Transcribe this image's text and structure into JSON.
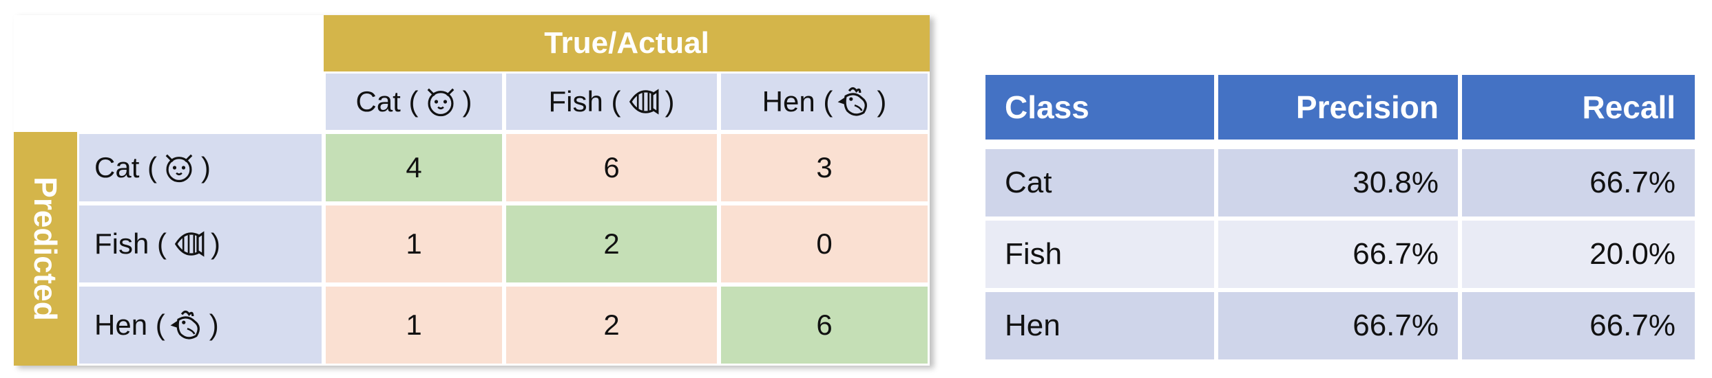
{
  "confusion_matrix": {
    "header": "True/Actual",
    "side_label": "Predicted",
    "col_labels": [
      "Cat (",
      "Fish (",
      "Hen ("
    ],
    "row_labels": [
      "Cat (",
      "Fish (",
      "Hen ("
    ],
    "close_paren": ")",
    "icons": [
      "cat-icon",
      "fish-icon",
      "hen-icon"
    ],
    "values": [
      [
        "4",
        "6",
        "3"
      ],
      [
        "1",
        "2",
        "0"
      ],
      [
        "1",
        "2",
        "6"
      ]
    ]
  },
  "metrics_table": {
    "headers": [
      "Class",
      "Precision",
      "Recall"
    ],
    "rows": [
      {
        "class": "Cat",
        "precision": "30.8%",
        "recall": "66.7%"
      },
      {
        "class": "Fish",
        "precision": "66.7%",
        "recall": "20.0%"
      },
      {
        "class": "Hen",
        "precision": "66.7%",
        "recall": "66.7%"
      }
    ]
  },
  "colors": {
    "header_gold": "#d4b54a",
    "label_blue": "#d6dcef",
    "diag_green": "#c5dfb6",
    "off_peach": "#fae0d2",
    "table_header_blue": "#4472c4"
  },
  "chart_data": {
    "type": "table",
    "title": "",
    "matrix": {
      "x_label": "True/Actual",
      "y_label": "Predicted",
      "x_categories": [
        "Cat",
        "Fish",
        "Hen"
      ],
      "y_categories": [
        "Cat",
        "Fish",
        "Hen"
      ],
      "cells": [
        [
          4,
          6,
          3
        ],
        [
          1,
          2,
          0
        ],
        [
          1,
          2,
          6
        ]
      ]
    },
    "metrics": {
      "columns": [
        "Class",
        "Precision",
        "Recall"
      ],
      "rows": [
        [
          "Cat",
          "30.8%",
          "66.7%"
        ],
        [
          "Fish",
          "66.7%",
          "20.0%"
        ],
        [
          "Hen",
          "66.7%",
          "66.7%"
        ]
      ]
    }
  }
}
